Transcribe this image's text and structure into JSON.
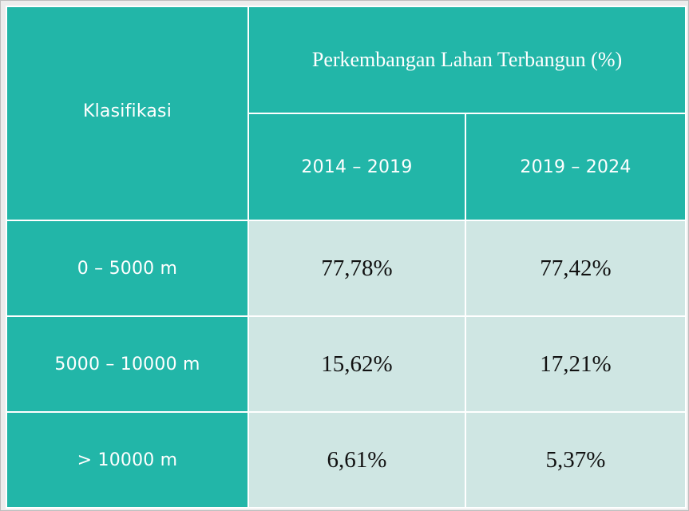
{
  "table": {
    "header": {
      "klasifikasi": "Klasifikasi",
      "group_title": "Perkembangan Lahan Terbangun (%)",
      "periods": [
        "2014 – 2019",
        "2019 – 2024"
      ]
    },
    "rows": [
      {
        "label": "0 – 5000 m",
        "values": [
          "77,78%",
          "77,42%"
        ]
      },
      {
        "label": "5000 – 10000 m",
        "values": [
          "15,62%",
          "17,21%"
        ]
      },
      {
        "label": "> 10000 m",
        "values": [
          "6,61%",
          "5,37%"
        ]
      }
    ]
  },
  "colors": {
    "header_teal": "#22b6a8",
    "cell_light": "#cfe6e3",
    "grid_line": "#ffffff",
    "frame_bg": "#ececec"
  }
}
